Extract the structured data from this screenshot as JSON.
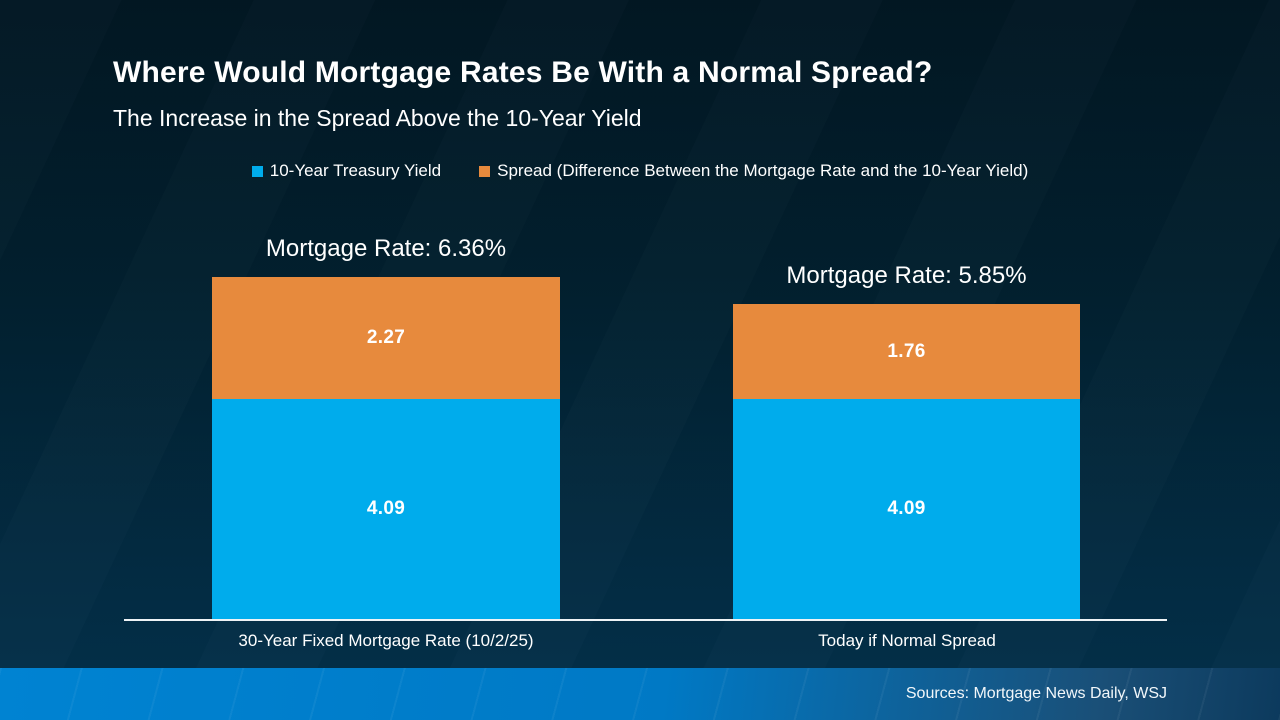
{
  "slide": {
    "title": "Where Would Mortgage Rates Be With a Normal Spread?",
    "subtitle": "The Increase in the Spread Above the 10-Year Yield",
    "source_note": "Sources: Mortgage News Daily, WSJ"
  },
  "chart_data": {
    "type": "bar",
    "stacked": true,
    "orientation": "vertical",
    "categories": [
      "30-Year Fixed Mortgage Rate (10/2/25)",
      "Today if Normal Spread"
    ],
    "series": [
      {
        "name": "10-Year Treasury Yield",
        "color": "#00ACEC",
        "values": [
          4.09,
          4.09
        ]
      },
      {
        "name": "Spread (Difference Between the Mortgage Rate and the 10-Year Yield)",
        "color": "#E78A3D",
        "values": [
          2.27,
          1.76
        ]
      }
    ],
    "totals": [
      6.36,
      5.85
    ],
    "total_labels": [
      "Mortgage Rate: 6.36%",
      "Mortgage Rate: 5.85%"
    ],
    "legend_position": "top",
    "gridlines": false,
    "y_axis_visible": false,
    "value_labels_inside": true
  },
  "colors": {
    "background_top": "#021723",
    "background_bottom": "#03314B",
    "footer_gradient_left": "#0083D2",
    "footer_gradient_right": "#0C3A5D",
    "axis_line": "#EEF3F6",
    "text": "#FFFFFF"
  }
}
